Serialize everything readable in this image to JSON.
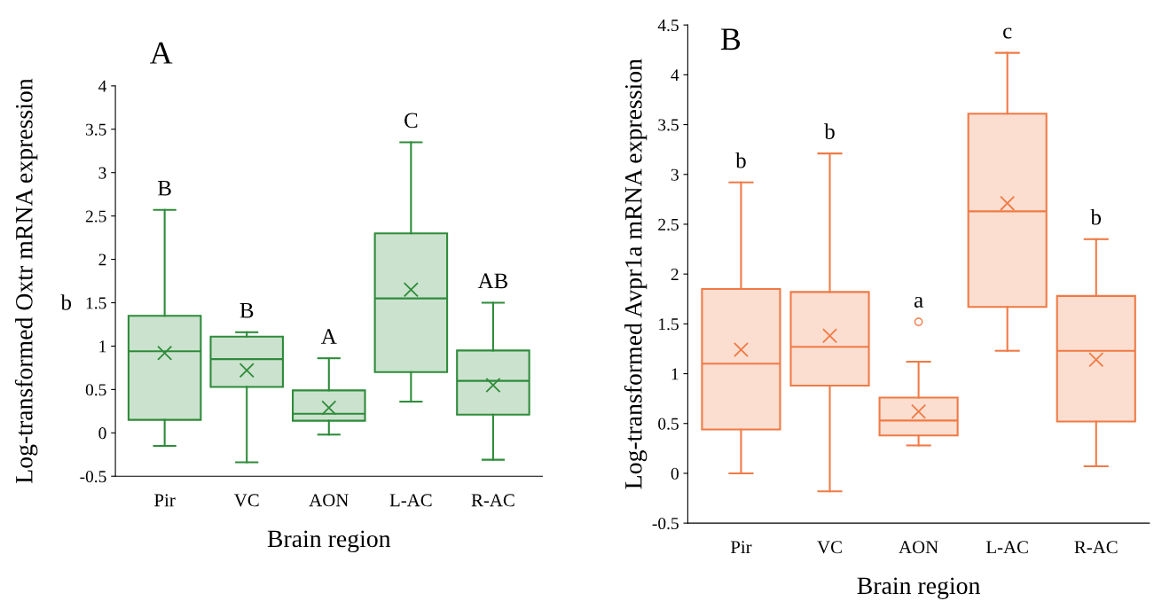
{
  "chart_data": [
    {
      "type": "box",
      "title": "A",
      "xlabel": "Brain region",
      "ylabel": "Log-transformed Oxtr mRNA expression",
      "categories": [
        "Pir",
        "VC",
        "AON",
        "L-AC",
        "R-AC"
      ],
      "ylim": [
        -0.5,
        4
      ],
      "yticks": [
        -0.5,
        0,
        0.5,
        1,
        1.5,
        2,
        2.5,
        3,
        3.5,
        4
      ],
      "grid": false,
      "legend": false,
      "marker": "cross",
      "series": [
        {
          "color": "#2e8b3a",
          "boxes": [
            {
              "low": -0.15,
              "q1": 0.15,
              "median": 0.94,
              "q3": 1.35,
              "high": 2.57,
              "mean": 0.92
            },
            {
              "low": -0.34,
              "q1": 0.53,
              "median": 0.85,
              "q3": 1.11,
              "high": 1.16,
              "mean": 0.72
            },
            {
              "low": -0.02,
              "q1": 0.14,
              "median": 0.22,
              "q3": 0.49,
              "high": 0.86,
              "mean": 0.29
            },
            {
              "low": 0.36,
              "q1": 0.7,
              "median": 1.55,
              "q3": 2.3,
              "high": 3.35,
              "mean": 1.65
            },
            {
              "low": -0.31,
              "q1": 0.21,
              "median": 0.6,
              "q3": 0.95,
              "high": 1.5,
              "mean": 0.55
            }
          ]
        }
      ],
      "annotations": [
        "B",
        "B",
        "A",
        "C",
        "AB",
        "b"
      ]
    },
    {
      "type": "box",
      "title": "B",
      "xlabel": "Brain region",
      "ylabel": "Log-transformed Avpr1a mRNA expression",
      "categories": [
        "Pir",
        "VC",
        "AON",
        "L-AC",
        "R-AC"
      ],
      "ylim": [
        -0.5,
        4.5
      ],
      "yticks": [
        -0.5,
        0,
        0.5,
        1,
        1.5,
        2,
        2.5,
        3,
        3.5,
        4,
        4.5
      ],
      "grid": false,
      "legend": false,
      "marker": "cross",
      "series": [
        {
          "color": "#f07a45",
          "boxes": [
            {
              "low": 0.0,
              "q1": 0.44,
              "median": 1.1,
              "q3": 1.85,
              "high": 2.92,
              "mean": 1.24
            },
            {
              "low": -0.18,
              "q1": 0.88,
              "median": 1.27,
              "q3": 1.82,
              "high": 3.21,
              "mean": 1.38
            },
            {
              "low": 0.28,
              "q1": 0.38,
              "median": 0.53,
              "q3": 0.76,
              "high": 1.12,
              "mean": 0.62,
              "outliers": [
                1.52
              ]
            },
            {
              "low": 1.23,
              "q1": 1.67,
              "median": 2.63,
              "q3": 3.61,
              "high": 4.22,
              "mean": 2.71
            },
            {
              "low": 0.07,
              "q1": 0.52,
              "median": 1.23,
              "q3": 1.78,
              "high": 2.35,
              "mean": 1.14
            }
          ]
        }
      ],
      "annotations": [
        "b",
        "b",
        "a",
        "c",
        "b"
      ]
    }
  ]
}
